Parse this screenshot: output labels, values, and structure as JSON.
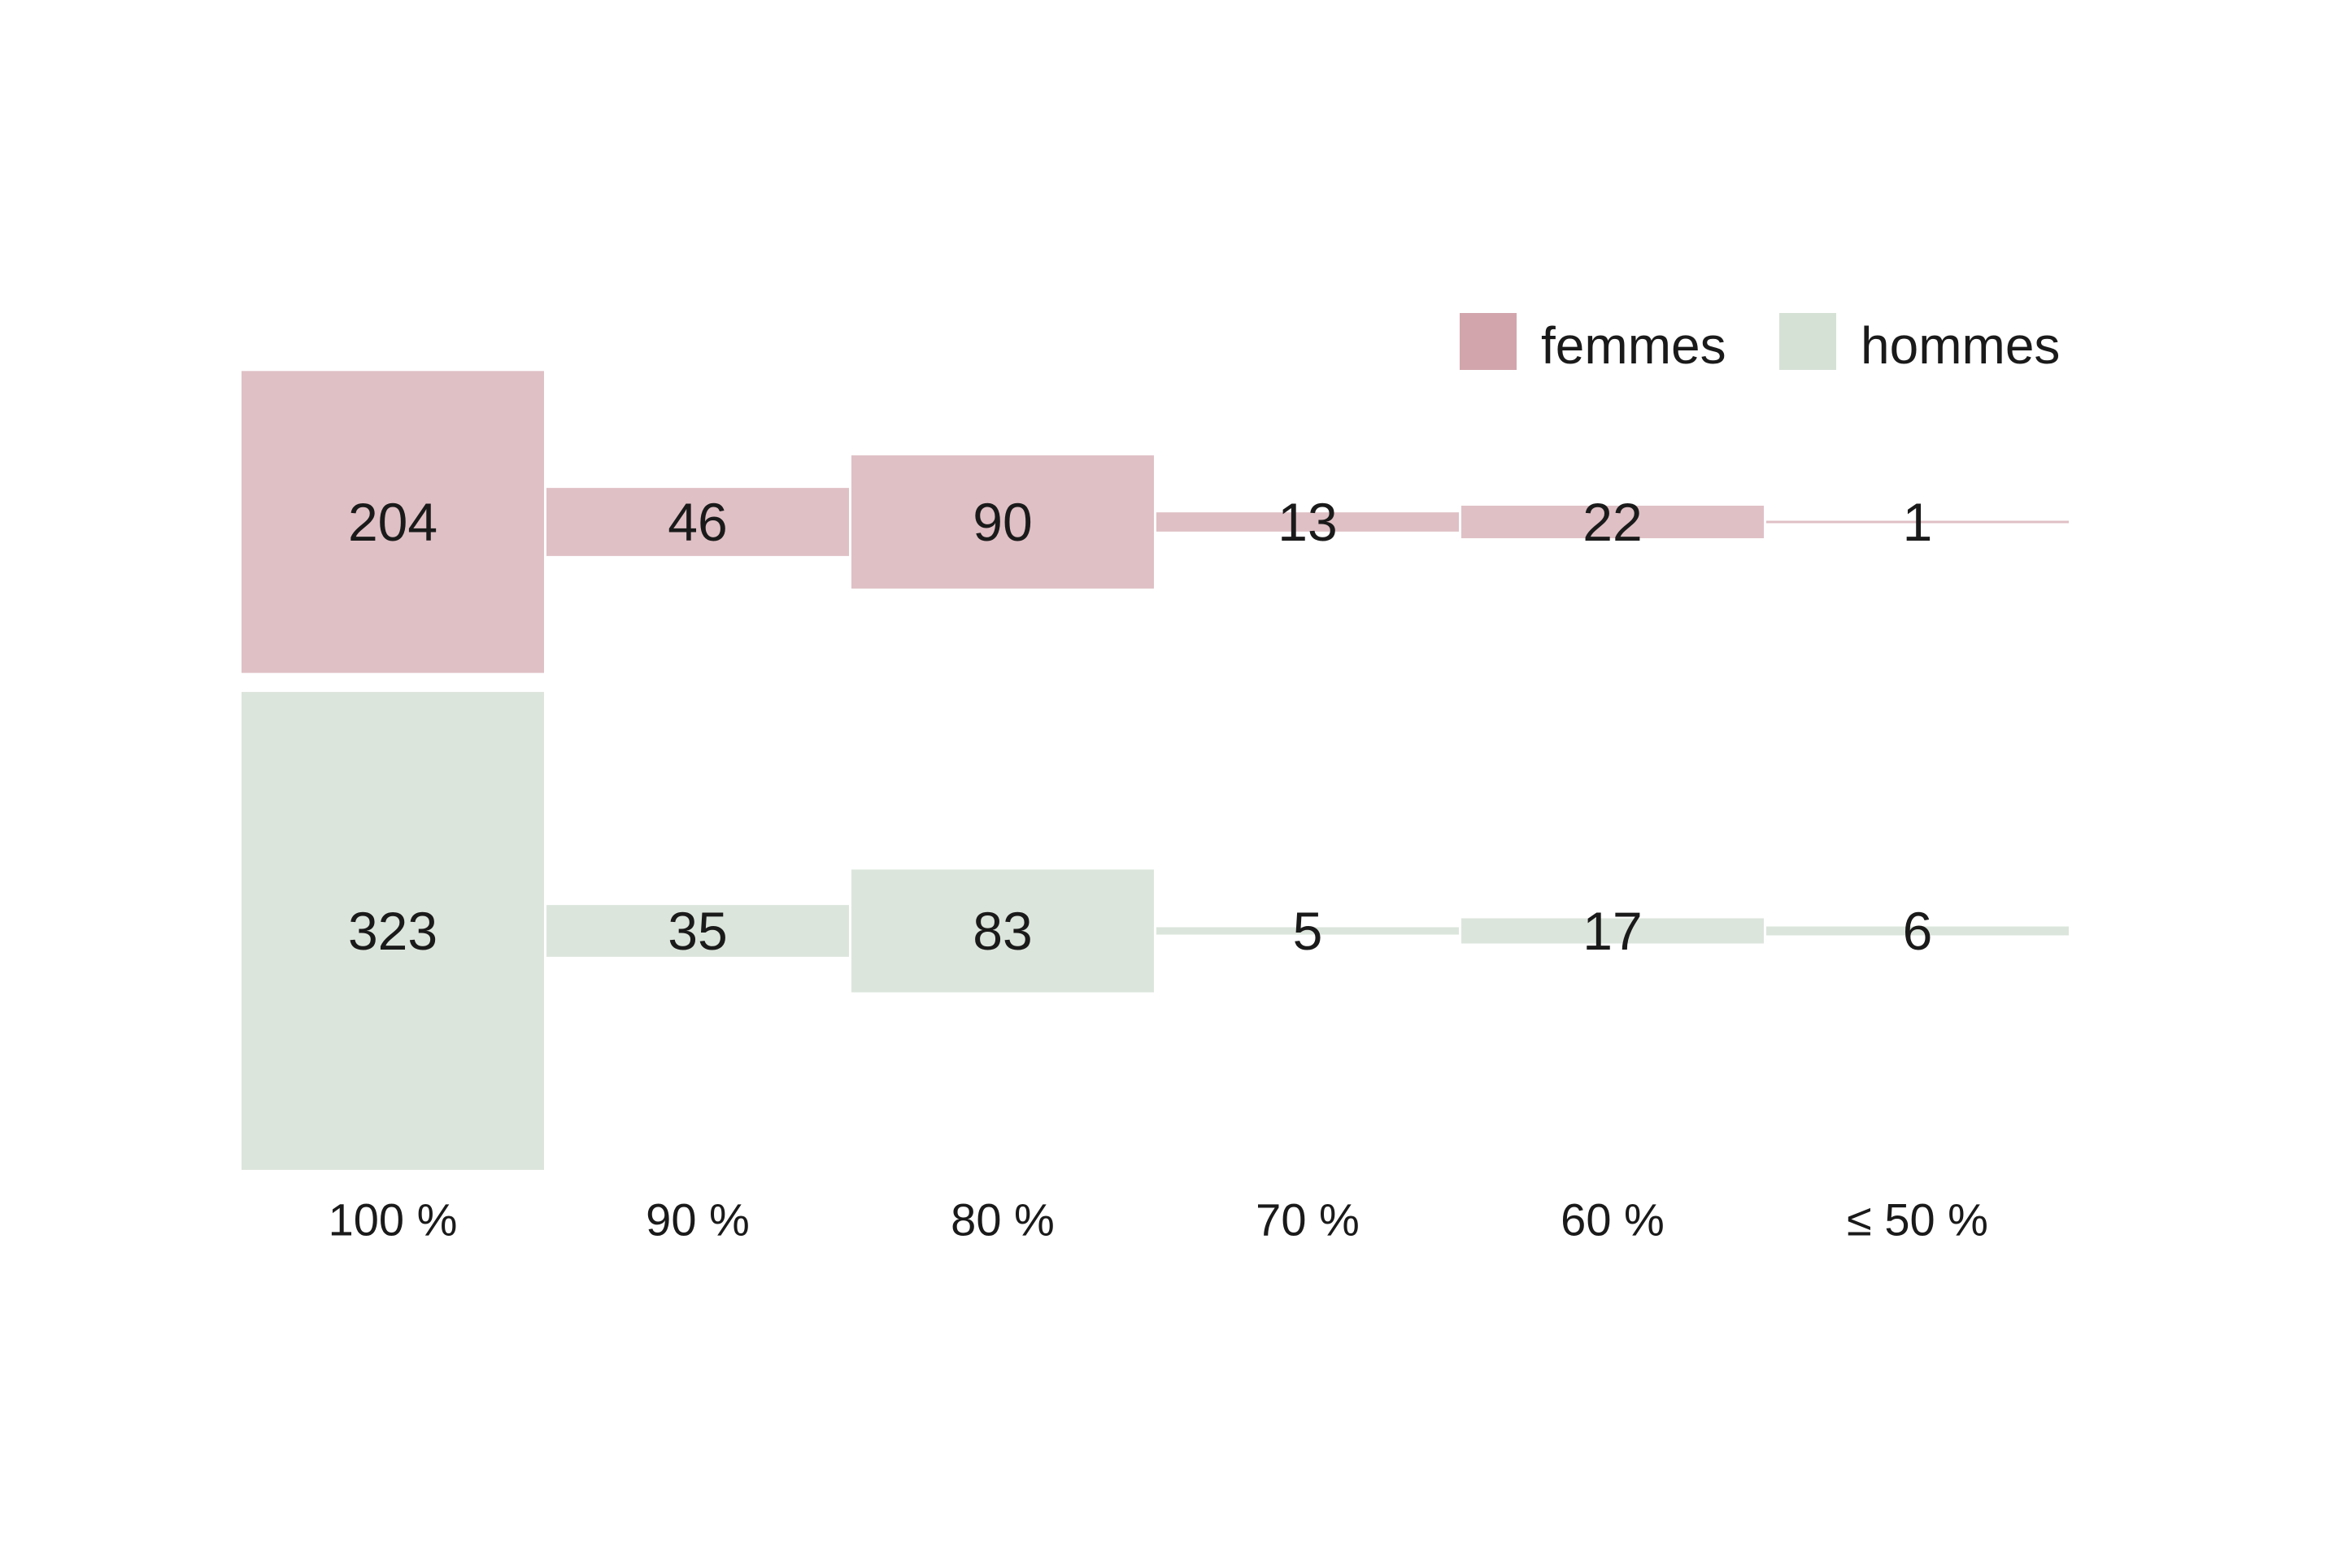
{
  "chart_data": {
    "type": "bar",
    "categories": [
      "100 %",
      "90 %",
      "80 %",
      "70 %",
      "60 %",
      "≤ 50 %"
    ],
    "series": [
      {
        "name": "femmes",
        "values": [
          204,
          46,
          90,
          13,
          22,
          1
        ],
        "color": "#dfc0c5",
        "legend_color": "#d2a5ac"
      },
      {
        "name": "hommes",
        "values": [
          323,
          35,
          83,
          5,
          17,
          6
        ],
        "color": "#dce5dc",
        "legend_color": "#d6e1d6"
      }
    ],
    "title": "",
    "xlabel": "",
    "ylabel": "",
    "legend_position": "top-right",
    "grid": false
  }
}
